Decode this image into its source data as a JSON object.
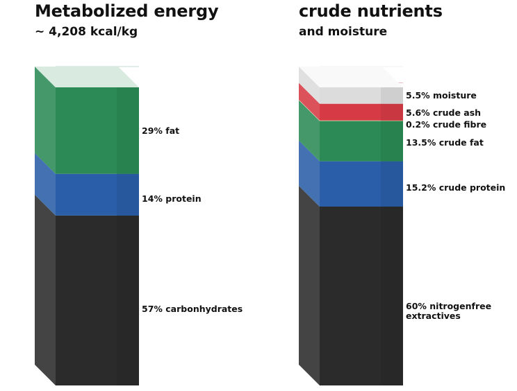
{
  "chart_data": [
    {
      "type": "stacked-bar-3d",
      "title": "Metabolized energy",
      "subtitle": "~ 4,208 kcal/kg",
      "unit": "%",
      "segments": [
        {
          "label": "57% carbonhydrates",
          "value": 57,
          "color": "#2b2b2b"
        },
        {
          "label": "14% protein",
          "value": 14,
          "color": "#2a5ea8"
        },
        {
          "label": "29% fat",
          "value": 29,
          "color": "#2b8a55"
        }
      ]
    },
    {
      "type": "stacked-bar-3d",
      "title": "crude nutrients",
      "subtitle": "and moisture",
      "unit": "%",
      "segments": [
        {
          "label": "60% nitrogenfree extractives",
          "value": 60,
          "color": "#2b2b2b"
        },
        {
          "label": "15.2% crude protein",
          "value": 15.2,
          "color": "#2a5ea8"
        },
        {
          "label": "13.5% crude fat",
          "value": 13.5,
          "color": "#2b8a55"
        },
        {
          "label": "0.2% crude fibre",
          "value": 0.2,
          "color": "#c9c79a"
        },
        {
          "label": "5.6% crude ash",
          "value": 5.6,
          "color": "#d63a44"
        },
        {
          "label": "5.5% moisture",
          "value": 5.5,
          "color": "#dcdcdc"
        }
      ]
    }
  ]
}
